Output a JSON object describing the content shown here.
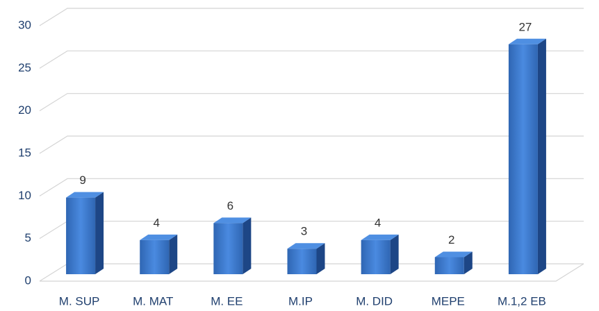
{
  "chart_data": {
    "type": "bar3d",
    "categories": [
      "M. SUP",
      "M. MAT",
      "M. EE",
      "M.IP",
      "M. DID",
      "MEPE",
      "M.1,2 EB"
    ],
    "values": [
      9,
      4,
      6,
      3,
      4,
      2,
      27
    ],
    "color": "#3a78cc",
    "ylim": [
      0,
      30
    ],
    "yticks": [
      0,
      5,
      10,
      15,
      20,
      25,
      30
    ],
    "grid": true
  }
}
